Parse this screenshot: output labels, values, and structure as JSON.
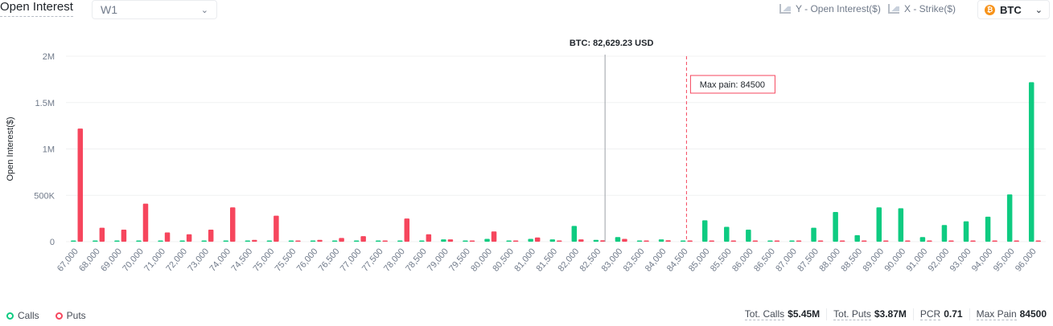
{
  "header": {
    "title": "Open Interest",
    "period": "W1",
    "y_axis_toggle": "Y - Open Interest($)",
    "x_axis_toggle": "X - Strike($)",
    "coin": "BTC"
  },
  "colors": {
    "calls": "#0ecb81",
    "puts": "#f6465d",
    "grid": "#f0f1f2",
    "text": "#707a8a",
    "price_line": "#9aa0a6",
    "max_pain": "#f6465d"
  },
  "chart_data": {
    "type": "bar",
    "ylabel": "Open Interest($)",
    "ylim": [
      0,
      2000000
    ],
    "y_ticks": [
      {
        "value": 0,
        "label": "0"
      },
      {
        "value": 500000,
        "label": "500K"
      },
      {
        "value": 1000000,
        "label": "1M"
      },
      {
        "value": 1500000,
        "label": "1.5M"
      },
      {
        "value": 2000000,
        "label": "2M"
      }
    ],
    "categories": [
      "67,000",
      "68,000",
      "69,000",
      "70,000",
      "71,000",
      "72,000",
      "73,000",
      "74,000",
      "74,500",
      "75,000",
      "75,500",
      "76,000",
      "76,500",
      "77,000",
      "77,500",
      "78,000",
      "78,500",
      "79,000",
      "79,500",
      "80,000",
      "80,500",
      "81,000",
      "81,500",
      "82,000",
      "82,500",
      "83,000",
      "83,500",
      "84,000",
      "84,500",
      "85,000",
      "85,500",
      "86,000",
      "86,500",
      "87,000",
      "87,500",
      "88,000",
      "88,500",
      "89,000",
      "90,000",
      "91,000",
      "92,000",
      "93,000",
      "94,000",
      "95,000",
      "96,000"
    ],
    "series": [
      {
        "name": "Calls",
        "values": [
          8000,
          10000,
          8000,
          8000,
          8000,
          8000,
          8000,
          8000,
          12000,
          8000,
          8000,
          8000,
          8000,
          8000,
          8000,
          8000,
          12000,
          25000,
          8000,
          30000,
          8000,
          30000,
          25000,
          170000,
          20000,
          50000,
          10000,
          25000,
          8000,
          230000,
          160000,
          130000,
          8000,
          8000,
          150000,
          320000,
          70000,
          370000,
          360000,
          50000,
          180000,
          220000,
          270000,
          510000,
          1720000
        ]
      },
      {
        "name": "Puts",
        "values": [
          1220000,
          150000,
          130000,
          410000,
          100000,
          80000,
          130000,
          370000,
          20000,
          280000,
          10000,
          20000,
          40000,
          60000,
          8000,
          250000,
          80000,
          25000,
          8000,
          110000,
          8000,
          45000,
          10000,
          25000,
          15000,
          30000,
          8000,
          15000,
          8000,
          8000,
          8000,
          8000,
          8000,
          8000,
          8000,
          8000,
          8000,
          8000,
          8000,
          8000,
          8000,
          8000,
          8000,
          8000,
          8000
        ]
      }
    ],
    "spot_price_label": "BTC: 82,629.23 USD",
    "spot_price": 82629.23,
    "max_pain_label": "Max pain: 84500",
    "max_pain": 84500,
    "legend": "bottom-left",
    "grid": true
  },
  "legend": {
    "calls": "Calls",
    "puts": "Puts"
  },
  "stats": {
    "tot_calls_label": "Tot. Calls",
    "tot_calls": "$5.45M",
    "tot_puts_label": "Tot. Puts",
    "tot_puts": "$3.87M",
    "pcr_label": "PCR",
    "pcr": "0.71",
    "max_pain_label": "Max Pain",
    "max_pain": "84500"
  }
}
